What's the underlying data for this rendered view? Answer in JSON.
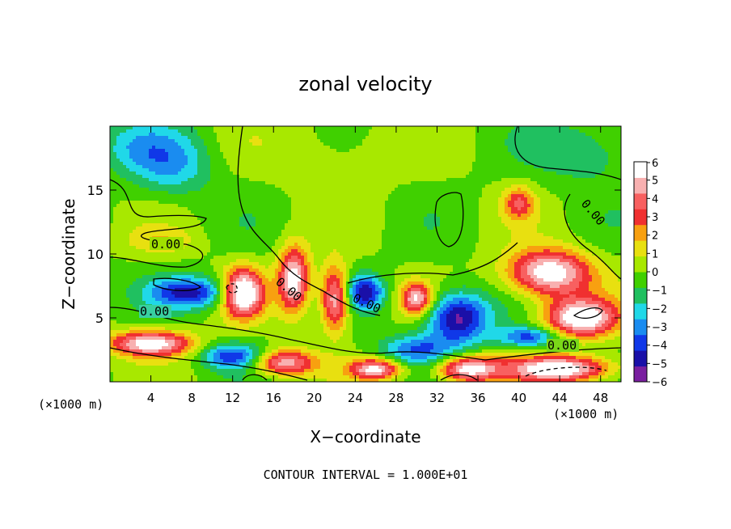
{
  "chart_data": {
    "type": "heatmap",
    "title": "zonal velocity",
    "xlabel": "X−coordinate",
    "ylabel": "Z−coordinate",
    "x_unit_label": "(×1000 m)",
    "x_unit_label_right": "(×1000 m)",
    "xlim": [
      0,
      50
    ],
    "ylim": [
      0,
      20
    ],
    "x_ticks": [
      4,
      8,
      12,
      16,
      20,
      24,
      28,
      32,
      36,
      40,
      44,
      48
    ],
    "y_ticks": [
      5,
      10,
      15
    ],
    "colorbar": {
      "min": -6,
      "max": 6,
      "ticks": [
        6,
        5,
        4,
        3,
        2,
        1,
        0,
        -1,
        -2,
        -3,
        -4,
        -5,
        -6
      ],
      "tick_labels": [
        "6",
        "5",
        "4",
        "3",
        "2",
        "1",
        "0",
        "−1",
        "−2",
        "−3",
        "−4",
        "−5",
        "−6"
      ],
      "colors": [
        "#7a1fa0",
        "#1a10a8",
        "#1038e8",
        "#1a8cf0",
        "#20d8e8",
        "#20c060",
        "#40d000",
        "#a8e800",
        "#e8e010",
        "#f8a010",
        "#f03030",
        "#f86060",
        "#f8b0b0",
        "#ffffff"
      ]
    },
    "contour_labels": [
      "0.00",
      "0.00",
      "0.00",
      "0.00",
      "0.00",
      "0.00"
    ],
    "footer": "CONTOUR INTERVAL = 1.000E+01",
    "grid": false,
    "legend": "colorbar-right",
    "field": {
      "nx": 51,
      "nz": 21,
      "background": 0.4,
      "features": [
        {
          "x": 6,
          "z": 17,
          "sx": 4.0,
          "sz": 2.5,
          "a": -2.6
        },
        {
          "x": 2,
          "z": 18.5,
          "sx": 4.0,
          "sz": 2.0,
          "a": -1.6
        },
        {
          "x": 47,
          "z": 18,
          "sx": 5.0,
          "sz": 2.5,
          "a": -1.8
        },
        {
          "x": 22,
          "z": 18,
          "sx": 6.0,
          "sz": 3.0,
          "a": 0.9
        },
        {
          "x": 40,
          "z": 14,
          "sx": 1.5,
          "sz": 1.3,
          "a": 3.4
        },
        {
          "x": 5,
          "z": 11,
          "sx": 3.5,
          "sz": 1.0,
          "a": 1.4
        },
        {
          "x": 8,
          "z": 7,
          "sx": 4.0,
          "sz": 1.2,
          "a": -4.8
        },
        {
          "x": 13,
          "z": 7,
          "sx": 2.0,
          "sz": 1.8,
          "a": 7.5
        },
        {
          "x": 18,
          "z": 8,
          "sx": 1.5,
          "sz": 2.5,
          "a": 6.5
        },
        {
          "x": 22,
          "z": 6.5,
          "sx": 1.4,
          "sz": 2.5,
          "a": 6.0
        },
        {
          "x": 25,
          "z": 7,
          "sx": 1.8,
          "sz": 1.3,
          "a": -5.0
        },
        {
          "x": 30,
          "z": 6.5,
          "sx": 1.5,
          "sz": 1.2,
          "a": 5.5
        },
        {
          "x": 34,
          "z": 5,
          "sx": 3.0,
          "sz": 2.0,
          "a": -6.0
        },
        {
          "x": 43,
          "z": 8.5,
          "sx": 4.0,
          "sz": 1.8,
          "a": 6.8
        },
        {
          "x": 46,
          "z": 5,
          "sx": 3.5,
          "sz": 1.5,
          "a": 7.0
        },
        {
          "x": 4,
          "z": 3,
          "sx": 4.0,
          "sz": 1.0,
          "a": 6.5
        },
        {
          "x": 12,
          "z": 2,
          "sx": 3.0,
          "sz": 1.0,
          "a": -4.2
        },
        {
          "x": 17,
          "z": 1.5,
          "sx": 3.0,
          "sz": 1.0,
          "a": 5.5
        },
        {
          "x": 26,
          "z": 1.0,
          "sx": 2.5,
          "sz": 0.8,
          "a": 6.0
        },
        {
          "x": 30,
          "z": 2.5,
          "sx": 3.5,
          "sz": 1.2,
          "a": -3.5
        },
        {
          "x": 35,
          "z": 1.0,
          "sx": 3.0,
          "sz": 1.0,
          "a": 6.5
        },
        {
          "x": 44,
          "z": 1.0,
          "sx": 5.0,
          "sz": 1.0,
          "a": 7.0
        },
        {
          "x": 41,
          "z": 3.5,
          "sx": 3.0,
          "sz": 0.8,
          "a": -4.0
        }
      ]
    }
  }
}
